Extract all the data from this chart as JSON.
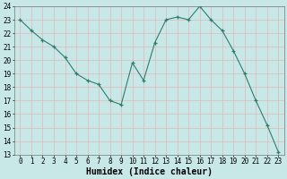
{
  "x": [
    0,
    1,
    2,
    3,
    4,
    5,
    6,
    7,
    8,
    9,
    10,
    11,
    12,
    13,
    14,
    15,
    16,
    17,
    18,
    19,
    20,
    21,
    22,
    23
  ],
  "y": [
    23.0,
    22.2,
    21.5,
    21.0,
    20.2,
    19.0,
    18.5,
    18.2,
    17.0,
    16.7,
    19.8,
    18.5,
    21.3,
    23.0,
    23.2,
    23.0,
    24.0,
    23.0,
    22.2,
    20.7,
    19.0,
    17.0,
    15.2,
    13.2
  ],
  "line_color": "#2d7d6e",
  "marker": "+",
  "bg_color": "#c8e8e8",
  "grid_color": "#e0b8b8",
  "xlabel": "Humidex (Indice chaleur)",
  "ylim": [
    13,
    24
  ],
  "xlim": [
    -0.5,
    23.5
  ],
  "yticks": [
    13,
    14,
    15,
    16,
    17,
    18,
    19,
    20,
    21,
    22,
    23,
    24
  ],
  "xticks": [
    0,
    1,
    2,
    3,
    4,
    5,
    6,
    7,
    8,
    9,
    10,
    11,
    12,
    13,
    14,
    15,
    16,
    17,
    18,
    19,
    20,
    21,
    22,
    23
  ],
  "tick_fontsize": 5.5,
  "xlabel_fontsize": 7.0,
  "lw": 0.8,
  "markersize": 3.5
}
